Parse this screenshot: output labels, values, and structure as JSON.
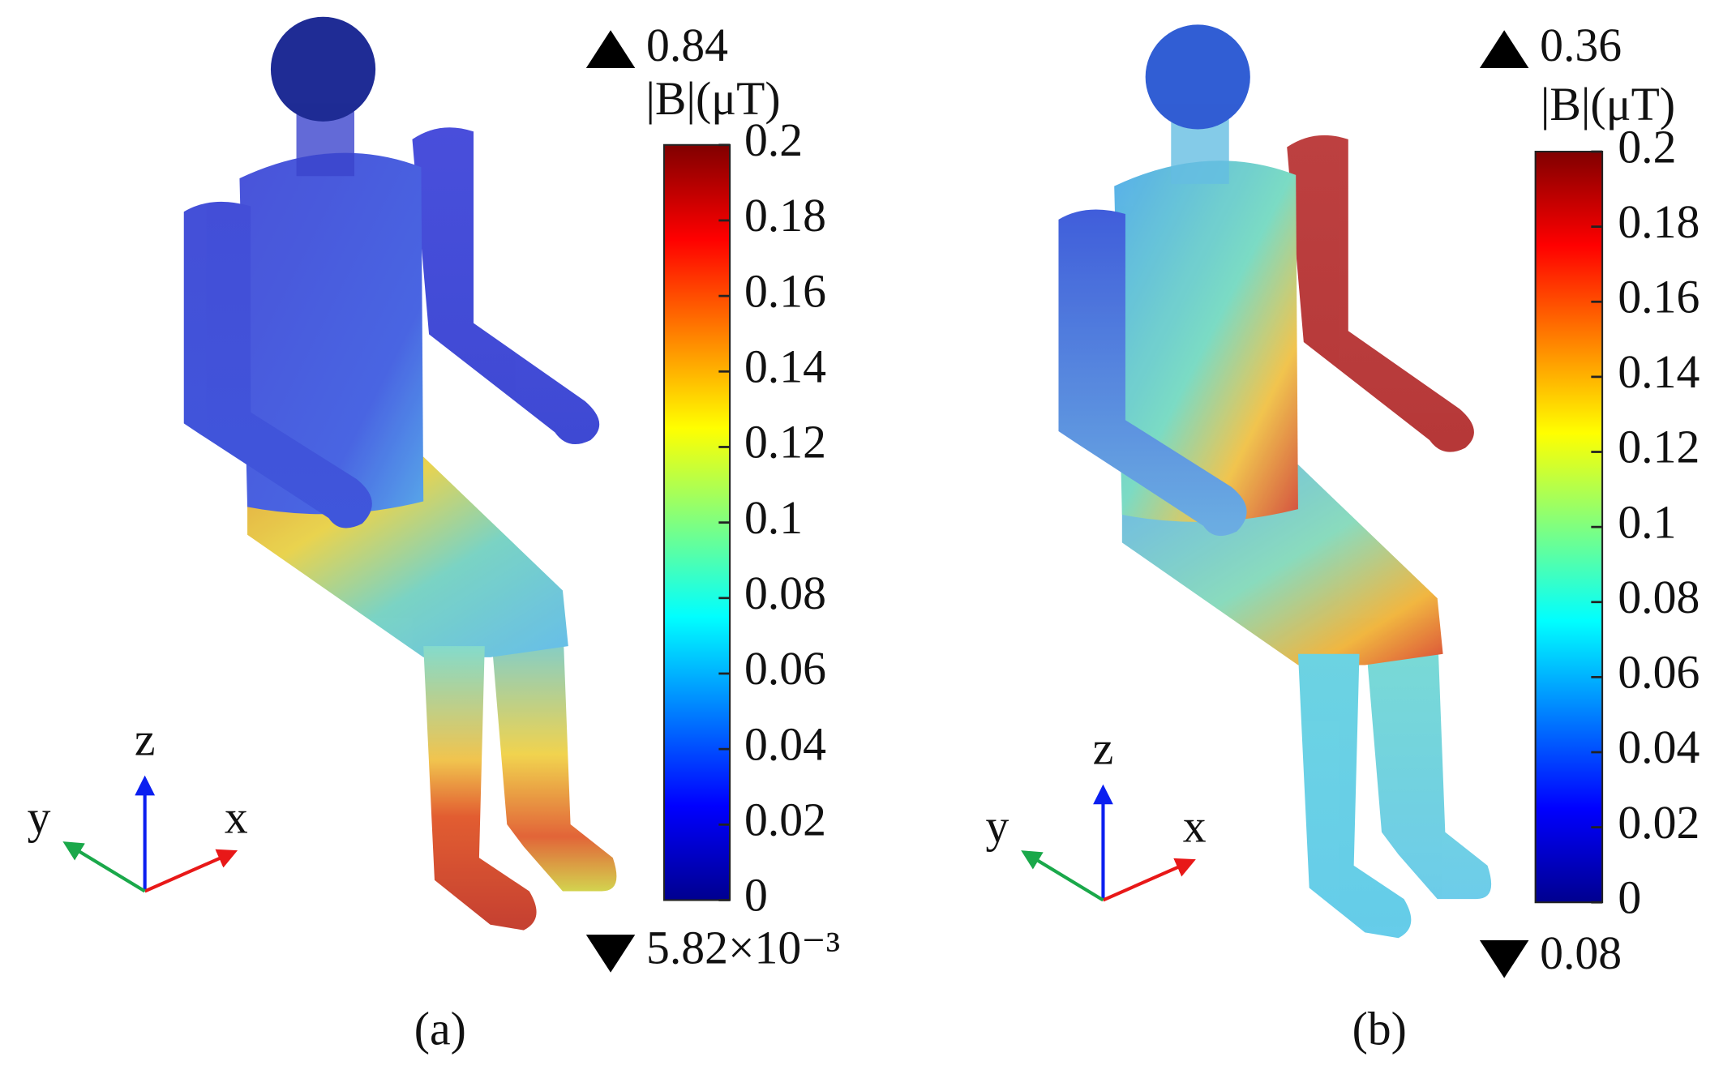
{
  "panels": [
    {
      "caption": "(a)",
      "max_value": 0.84,
      "unit_label": "|B|(μT)",
      "min_value": {
        "value": 0.00582,
        "label": "5.82×10⁻³"
      },
      "colorbar": {
        "lim": [
          0,
          0.2
        ],
        "ticks": [
          0,
          0.02,
          0.04,
          0.06,
          0.08,
          0.1,
          0.12,
          0.14,
          0.16,
          0.18,
          0.2
        ]
      },
      "axes": {
        "z": "z",
        "y": "y",
        "x": "x"
      }
    },
    {
      "caption": "(b)",
      "max_value": 0.36,
      "unit_label": "|B|(μT)",
      "min_value": 0.08,
      "colorbar": {
        "lim": [
          0,
          0.2
        ],
        "ticks": [
          0,
          0.02,
          0.04,
          0.06,
          0.08,
          0.1,
          0.12,
          0.14,
          0.16,
          0.18,
          0.2
        ]
      },
      "axes": {
        "z": "z",
        "y": "y",
        "x": "x"
      }
    }
  ]
}
